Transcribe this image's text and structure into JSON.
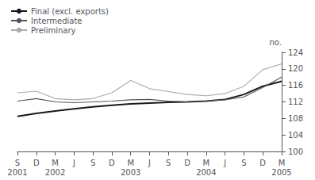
{
  "chart_data": {
    "type": "line",
    "categories": [
      "S",
      "D",
      "M",
      "J",
      "S",
      "D",
      "M",
      "J",
      "S",
      "D",
      "M",
      "J",
      "S",
      "D",
      "M"
    ],
    "year_labels": [
      "2001",
      null,
      "2002",
      null,
      null,
      null,
      "2003",
      null,
      null,
      null,
      "2004",
      null,
      null,
      null,
      "2005"
    ],
    "ylabel": "no.",
    "series": [
      {
        "name": "Final (excl. exports)",
        "color": "#1a1a1a",
        "values": [
          108.5,
          109.2,
          109.8,
          110.3,
          110.8,
          111.2,
          111.5,
          111.7,
          111.9,
          112.0,
          112.2,
          112.6,
          113.8,
          115.8,
          117.0
        ]
      },
      {
        "name": "Intermediate",
        "color": "#555555",
        "values": [
          112.2,
          112.8,
          112.0,
          111.8,
          112.0,
          112.2,
          112.5,
          112.6,
          112.2,
          112.0,
          112.2,
          112.5,
          113.2,
          115.5,
          118.0
        ]
      },
      {
        "name": "Preliminary",
        "color": "#aaaaaa",
        "values": [
          114.2,
          114.6,
          112.8,
          112.5,
          112.8,
          114.2,
          117.2,
          115.2,
          114.5,
          113.8,
          113.5,
          114.0,
          115.8,
          119.8,
          121.2
        ]
      }
    ],
    "ylim": [
      100,
      124
    ],
    "yticks": [
      100,
      104,
      108,
      112,
      116,
      120,
      124
    ],
    "grid": false,
    "legend": "upper left"
  }
}
